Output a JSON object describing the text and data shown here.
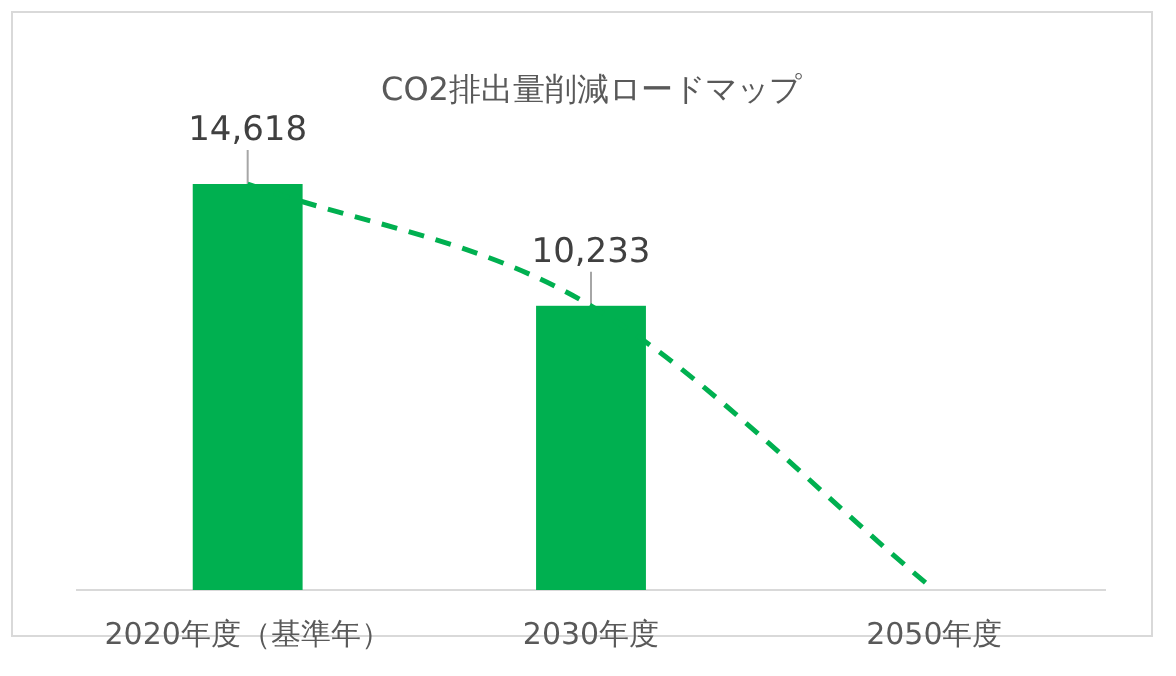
{
  "chart_data": {
    "type": "bar",
    "title": "CO2排出量削減ロードマップ",
    "categories": [
      "2020年度（基準年）",
      "2030年度",
      "2050年度"
    ],
    "series": [
      {
        "color": "#00b050",
        "values": [
          14618,
          10233,
          null
        ],
        "value_labels": [
          "14,618",
          "10,233",
          null
        ]
      },
      {
        "type": "line",
        "color": "#00b050",
        "line_style": "dashed",
        "values": [
          14618,
          10233,
          0
        ]
      }
    ]
  }
}
